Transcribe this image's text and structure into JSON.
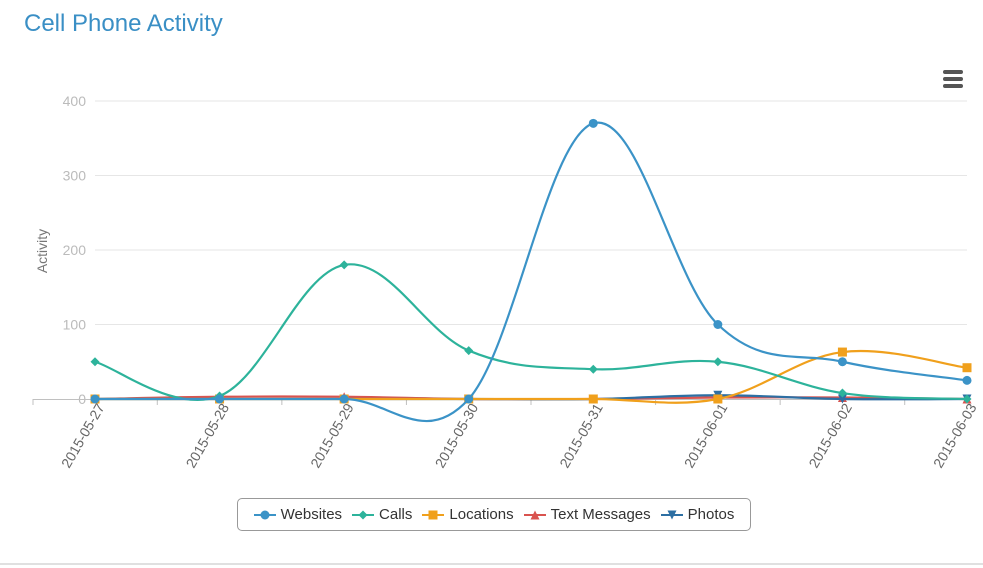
{
  "chart_data": {
    "type": "line",
    "title": "Cell Phone Activity",
    "ylabel": "Activity",
    "xlabel": "",
    "categories": [
      "2015-05-27",
      "2015-05-28",
      "2015-05-29",
      "2015-05-30",
      "2015-05-31",
      "2015-06-01",
      "2015-06-02",
      "2015-06-03"
    ],
    "ylim": [
      0,
      400
    ],
    "yticks": [
      0,
      100,
      200,
      300,
      400
    ],
    "grid": true,
    "legend_position": "bottom",
    "series": [
      {
        "name": "Websites",
        "color": "#3b93c7",
        "marker": "circle",
        "values": [
          0,
          0,
          0,
          0,
          370,
          100,
          50,
          25
        ]
      },
      {
        "name": "Calls",
        "color": "#2db39b",
        "marker": "diamond",
        "values": [
          50,
          4,
          180,
          65,
          40,
          50,
          8,
          0
        ]
      },
      {
        "name": "Locations",
        "color": "#f0a01c",
        "marker": "square",
        "values": [
          0,
          0,
          0,
          0,
          0,
          0,
          63,
          42
        ]
      },
      {
        "name": "Text Messages",
        "color": "#d9534f",
        "marker": "triangle",
        "values": [
          0,
          3,
          3,
          0,
          0,
          2,
          2,
          0
        ]
      },
      {
        "name": "Photos",
        "color": "#2d6fa3",
        "marker": "triangle-down",
        "values": [
          0,
          0,
          0,
          0,
          0,
          5,
          0,
          0
        ]
      }
    ]
  },
  "menu_icon": "hamburger-menu-icon"
}
